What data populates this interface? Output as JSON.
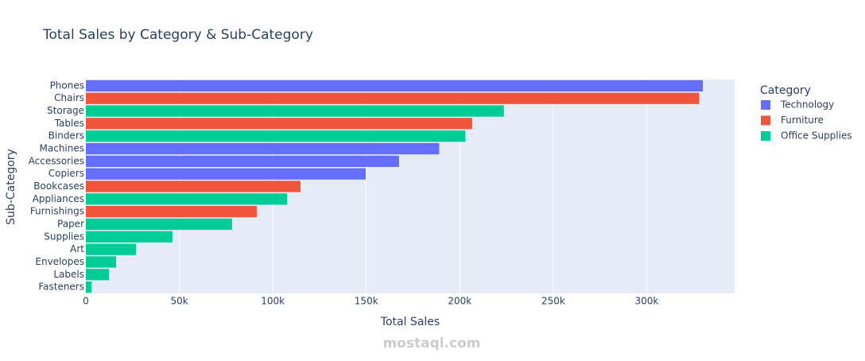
{
  "chart_data": {
    "type": "bar",
    "orientation": "horizontal",
    "title": "Total Sales by Category & Sub-Category",
    "x_label": "Total Sales",
    "y_label": "Sub-Category",
    "legend_title": "Category",
    "legend_position": "right",
    "categories": [
      "Phones",
      "Chairs",
      "Storage",
      "Tables",
      "Binders",
      "Machines",
      "Accessories",
      "Copiers",
      "Bookcases",
      "Appliances",
      "Furnishings",
      "Paper",
      "Supplies",
      "Art",
      "Envelopes",
      "Labels",
      "Fasteners"
    ],
    "series": [
      {
        "name": "Technology",
        "color": "#636efa",
        "values": [
          330000,
          null,
          null,
          null,
          null,
          189000,
          167500,
          149700,
          null,
          null,
          null,
          null,
          null,
          null,
          null,
          null,
          null
        ]
      },
      {
        "name": "Furniture",
        "color": "#ef553b",
        "values": [
          null,
          328000,
          null,
          206600,
          null,
          null,
          null,
          null,
          114800,
          null,
          91400,
          null,
          null,
          null,
          null,
          null,
          null
        ]
      },
      {
        "name": "Office Supplies",
        "color": "#00cc96",
        "values": [
          null,
          null,
          223600,
          null,
          203000,
          null,
          null,
          null,
          null,
          107600,
          null,
          78200,
          46300,
          26800,
          16200,
          12300,
          3000
        ]
      }
    ],
    "xlim": [
      0,
      347000
    ],
    "xticks": [
      0,
      {
        "value": 50000,
        "label": "50k"
      },
      {
        "value": 100000,
        "label": "100k"
      },
      {
        "value": 150000,
        "label": "150k"
      },
      {
        "value": 200000,
        "label": "200k"
      },
      {
        "value": 250000,
        "label": "250k"
      },
      {
        "value": 300000,
        "label": "300k"
      }
    ],
    "grid": true,
    "watermark": "mostaql.com"
  }
}
